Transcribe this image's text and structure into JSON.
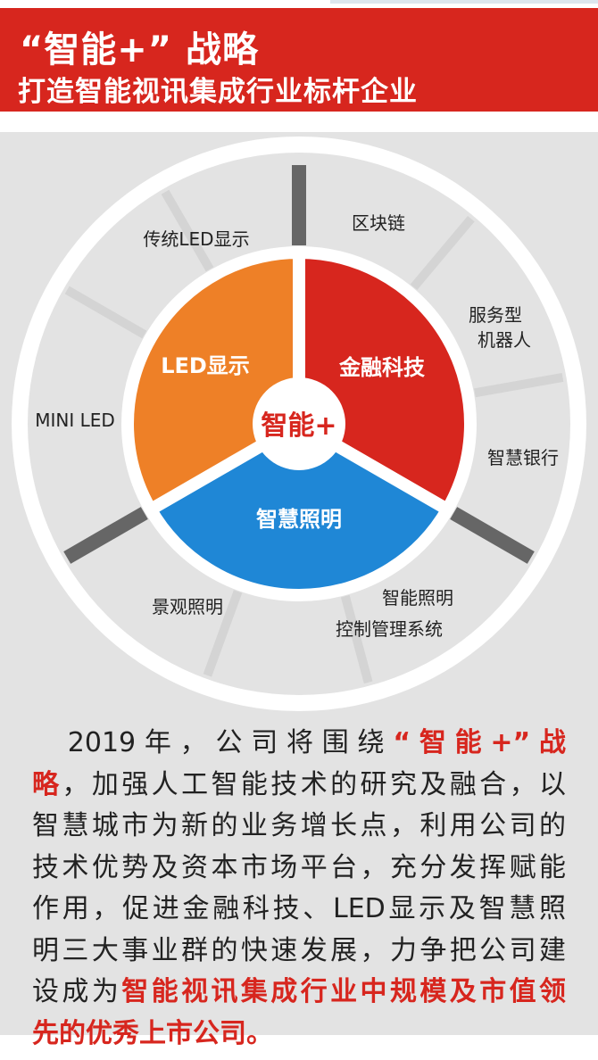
{
  "header": {
    "title": "“智能+” 战略",
    "subtitle": "打造智能视讯集成行业标杆企业"
  },
  "diagram": {
    "center": "智能+",
    "sectors": [
      {
        "label": "金融科技",
        "color": "#d7261e",
        "items": [
          "区块链",
          "服务型机器人",
          "智慧银行"
        ]
      },
      {
        "label": "智慧照明",
        "color": "#1f87d6",
        "items": [
          "智能照明控制管理系统",
          "景观照明"
        ]
      },
      {
        "label": "LED显示",
        "color": "#ee8027",
        "items": [
          "MINI LED",
          "传统LED显示"
        ]
      }
    ],
    "outer_labels": {
      "blockchain": "区块链",
      "robot_1": "服务型",
      "robot_2": "机器人",
      "bank": "智慧银行",
      "lighting_ctrl_1": "智能照明",
      "lighting_ctrl_2": "控制管理系统",
      "landscape": "景观照明",
      "mini_led": "MINI LED",
      "traditional_led": "传统LED显示"
    }
  },
  "paragraph": {
    "lines": [
      [
        {
          "t": "　2019年，公司将围绕",
          "r": false
        },
        {
          "t": "“智能+”战",
          "r": true
        }
      ],
      [
        {
          "t": "略",
          "r": true
        },
        {
          "t": "，加强人工智能技术的研究及融合，以",
          "r": false
        }
      ],
      [
        {
          "t": "智慧城市为新的业务增长点，利用公司的",
          "r": false
        }
      ],
      [
        {
          "t": "技术优势及资本市场平台，充分发挥赋能",
          "r": false
        }
      ],
      [
        {
          "t": "作用，促进金融科技、LED显示及智慧照",
          "r": false
        }
      ],
      [
        {
          "t": "明三大事业群的快速发展，力争把公司建",
          "r": false
        }
      ],
      [
        {
          "t": "设成为",
          "r": false
        },
        {
          "t": "智能视讯集成行业中规模及市值领",
          "r": true
        }
      ],
      [
        {
          "t": "先的优秀上市公司。",
          "r": true
        }
      ]
    ]
  }
}
